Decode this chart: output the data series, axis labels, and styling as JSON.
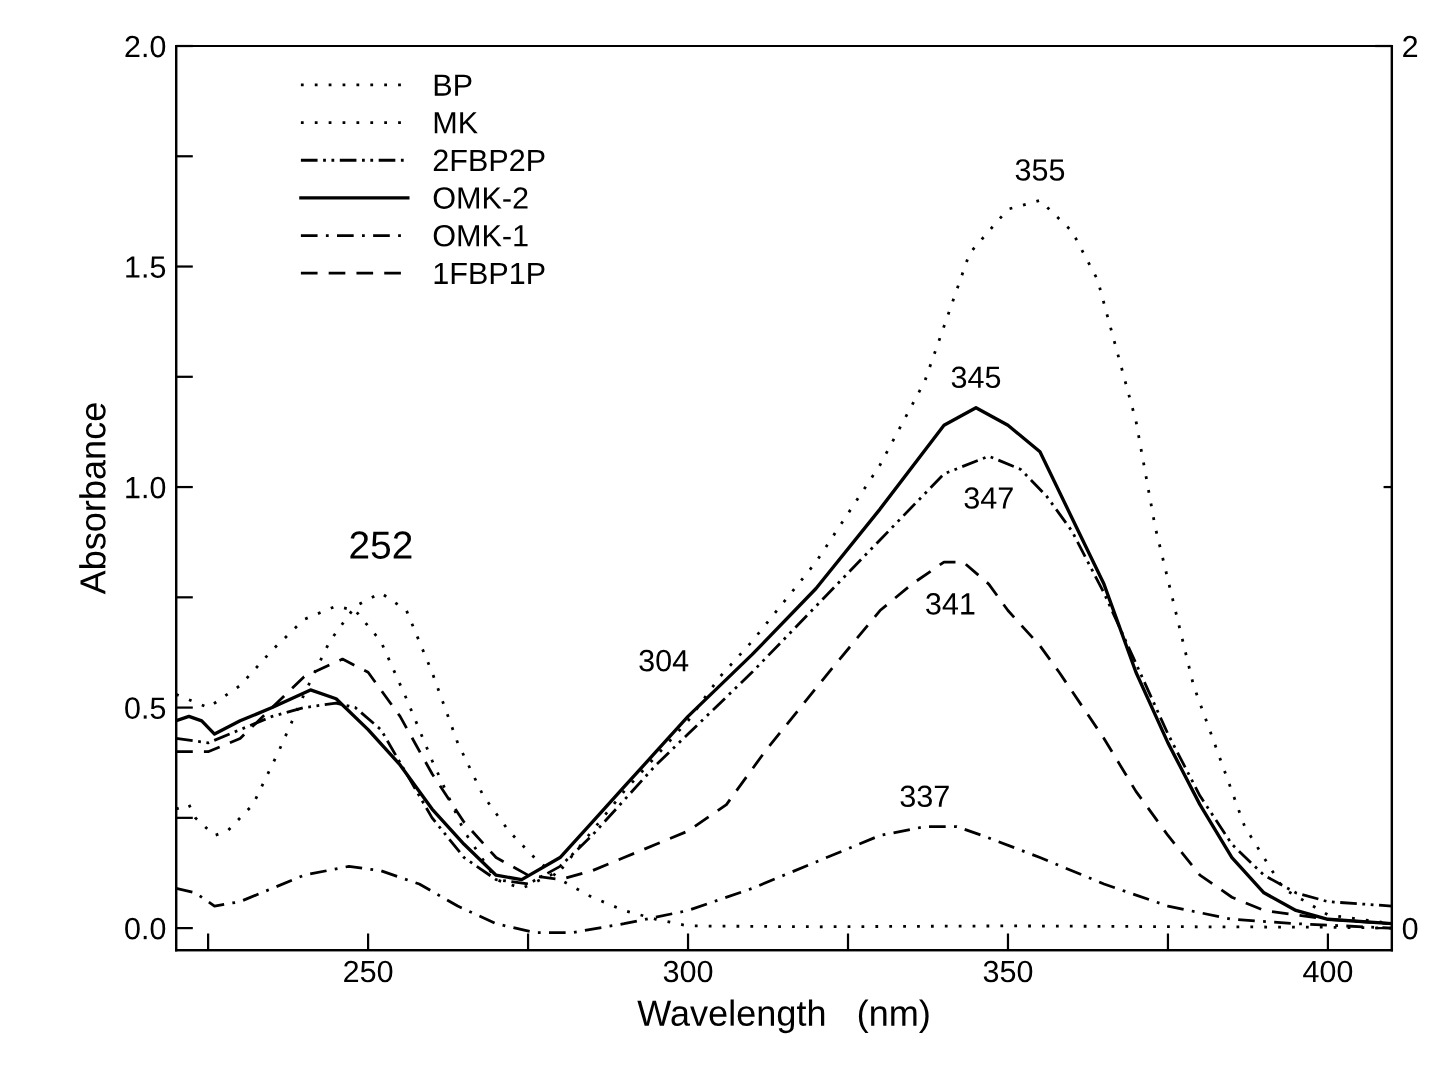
{
  "chart_data": {
    "type": "line",
    "xlabel": "Wavelength   (nm)",
    "ylabel": "Absorbance",
    "xlim": [
      220,
      410
    ],
    "xticks": [
      {
        "value": 225,
        "label": null
      },
      250,
      {
        "value": 275,
        "label": null
      },
      300,
      {
        "value": 325,
        "label": null
      },
      350,
      {
        "value": 375,
        "label": null
      },
      400
    ],
    "ylim": [
      -0.05,
      2.0
    ],
    "yticks": [
      {
        "value": 0,
        "label": "0.0"
      },
      {
        "value": 0.25,
        "label": null
      },
      0.5,
      {
        "value": 0.75,
        "label": null
      },
      {
        "value": 1,
        "label": "1.0"
      },
      {
        "value": 1.25,
        "label": null
      },
      1.5,
      {
        "value": 1.75,
        "label": null
      },
      {
        "value": 2,
        "label": "2.0"
      }
    ],
    "y2lim": [
      -0.05,
      2.0
    ],
    "y2ticks": [
      0,
      {
        "value": 1,
        "label": null
      },
      2
    ],
    "grid": false,
    "legend": "top left",
    "series": [
      {
        "name": "BP",
        "color": "#000000",
        "line_style": "dotted",
        "x": [
          220,
          222,
          223,
          226,
          228,
          232,
          236,
          240,
          244,
          248,
          252,
          256,
          260,
          264,
          268,
          272,
          276,
          280,
          285,
          290,
          295,
          300,
          320,
          350,
          380,
          400,
          410
        ],
        "values": [
          0.27,
          0.28,
          0.25,
          0.21,
          0.22,
          0.28,
          0.4,
          0.53,
          0.65,
          0.73,
          0.76,
          0.72,
          0.58,
          0.42,
          0.3,
          0.22,
          0.16,
          0.11,
          0.07,
          0.04,
          0.02,
          0.005,
          0.003,
          0.005,
          0.003,
          0.002,
          0.0
        ]
      },
      {
        "name": "MK",
        "color": "#000000",
        "line_style": "dotted",
        "x": [
          220,
          225,
          230,
          235,
          240,
          245,
          248,
          252,
          256,
          260,
          265,
          270,
          274,
          280,
          285,
          290,
          295,
          300,
          305,
          310,
          320,
          330,
          337,
          344,
          350,
          355,
          360,
          364,
          370,
          373,
          379,
          387,
          393,
          400,
          410
        ],
        "values": [
          0.53,
          0.5,
          0.55,
          0.63,
          0.7,
          0.73,
          0.72,
          0.65,
          0.52,
          0.38,
          0.22,
          0.11,
          0.09,
          0.13,
          0.22,
          0.31,
          0.39,
          0.47,
          0.57,
          0.65,
          0.83,
          1.05,
          1.24,
          1.53,
          1.63,
          1.65,
          1.58,
          1.47,
          1.15,
          0.91,
          0.55,
          0.23,
          0.09,
          0.03,
          0.01
        ]
      },
      {
        "name": "2FBP2P",
        "color": "#000000",
        "line_style": "dashdotdot",
        "x": [
          220,
          225,
          230,
          235,
          240,
          245,
          248,
          252,
          256,
          260,
          265,
          270,
          275,
          280,
          285,
          290,
          295,
          300,
          310,
          320,
          330,
          340,
          347,
          352,
          356,
          360,
          365,
          370,
          375,
          380,
          385,
          390,
          395,
          400,
          410
        ],
        "values": [
          0.43,
          0.42,
          0.45,
          0.48,
          0.5,
          0.51,
          0.5,
          0.45,
          0.35,
          0.25,
          0.16,
          0.11,
          0.1,
          0.14,
          0.21,
          0.29,
          0.37,
          0.44,
          0.58,
          0.73,
          0.88,
          1.03,
          1.07,
          1.04,
          0.98,
          0.9,
          0.76,
          0.6,
          0.44,
          0.3,
          0.19,
          0.12,
          0.08,
          0.06,
          0.05
        ]
      },
      {
        "name": "OMK-2",
        "color": "#000000",
        "line_style": "solid",
        "x": [
          220,
          222,
          224,
          226,
          230,
          235,
          241,
          245,
          250,
          255,
          260,
          265,
          270,
          274,
          280,
          285,
          290,
          295,
          300,
          310,
          320,
          330,
          340,
          345,
          350,
          355,
          360,
          365,
          370,
          375,
          380,
          385,
          390,
          395,
          400,
          410
        ],
        "values": [
          0.47,
          0.48,
          0.47,
          0.44,
          0.47,
          0.5,
          0.54,
          0.52,
          0.45,
          0.37,
          0.27,
          0.19,
          0.12,
          0.11,
          0.16,
          0.24,
          0.32,
          0.4,
          0.48,
          0.62,
          0.77,
          0.95,
          1.14,
          1.18,
          1.14,
          1.08,
          0.93,
          0.78,
          0.58,
          0.42,
          0.28,
          0.16,
          0.08,
          0.04,
          0.02,
          0.01
        ]
      },
      {
        "name": "OMK-1",
        "color": "#000000",
        "line_style": "dashdot",
        "x": [
          220,
          223,
          226,
          230,
          235,
          240,
          247,
          252,
          258,
          264,
          270,
          276,
          282,
          290,
          300,
          310,
          320,
          330,
          337,
          342,
          346,
          355,
          365,
          375,
          385,
          395,
          410
        ],
        "values": [
          0.09,
          0.08,
          0.05,
          0.06,
          0.09,
          0.12,
          0.14,
          0.13,
          0.1,
          0.05,
          0.01,
          -0.01,
          -0.01,
          0.01,
          0.04,
          0.09,
          0.15,
          0.21,
          0.23,
          0.23,
          0.21,
          0.16,
          0.1,
          0.05,
          0.02,
          0.01,
          0.0
        ]
      },
      {
        "name": "1FBP1P",
        "color": "#000000",
        "line_style": "dashed",
        "x": [
          220,
          225,
          230,
          235,
          240,
          246,
          250,
          255,
          260,
          265,
          270,
          275,
          280,
          285,
          290,
          295,
          300,
          306,
          312,
          322,
          330,
          335,
          340,
          343,
          347,
          350,
          355,
          358,
          365,
          370,
          375,
          380,
          385,
          390,
          400,
          410
        ],
        "values": [
          0.4,
          0.4,
          0.43,
          0.5,
          0.57,
          0.61,
          0.58,
          0.48,
          0.35,
          0.24,
          0.16,
          0.12,
          0.11,
          0.13,
          0.16,
          0.19,
          0.22,
          0.28,
          0.4,
          0.58,
          0.72,
          0.78,
          0.83,
          0.83,
          0.78,
          0.72,
          0.64,
          0.58,
          0.43,
          0.31,
          0.21,
          0.12,
          0.07,
          0.04,
          0.02,
          0.01
        ]
      }
    ],
    "annotations": [
      {
        "text": "252",
        "x": 252,
        "y": 0.76
      },
      {
        "text": "304",
        "x": 304,
        "y": 0.55
      },
      {
        "text": "355",
        "x": 355,
        "y": 1.65
      },
      {
        "text": "345",
        "x": 345,
        "y": 1.18
      },
      {
        "text": "347",
        "x": 347,
        "y": 1.07
      },
      {
        "text": "341",
        "x": 341,
        "y": 0.83
      },
      {
        "text": "337",
        "x": 337,
        "y": 0.23
      }
    ]
  }
}
